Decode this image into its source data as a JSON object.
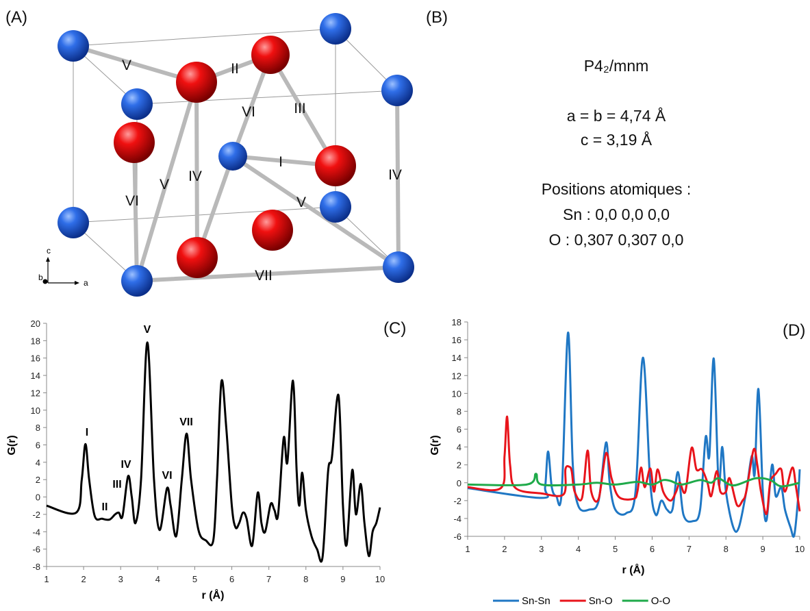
{
  "panel_a": {
    "label": "(A)",
    "bonds": [
      "V",
      "II",
      "VI",
      "III",
      "I",
      "IV",
      "V",
      "VI",
      "IV",
      "V",
      "VII"
    ],
    "axes": [
      "c",
      "b",
      "a"
    ]
  },
  "panel_b": {
    "label": "(B)",
    "space_group": "P4₂/mnm",
    "lattice": [
      "a = b = 4,74 Å",
      "c =  3,19 Å"
    ],
    "positions_title": "Positions atomiques :",
    "positions": [
      "Sn : 0,0 0,0 0,0",
      "O : 0,307 0,307 0,0"
    ]
  },
  "chart_data": [
    {
      "type": "line",
      "panel_label": "(C)",
      "x_label": "r (Å)",
      "y_label": "G(r)",
      "xlim": [
        1,
        10
      ],
      "xticks": [
        1,
        2,
        3,
        4,
        5,
        6,
        7,
        8,
        9,
        10
      ],
      "ylim": [
        -8,
        20
      ],
      "yticks": [
        -8,
        -6,
        -4,
        -2,
        0,
        2,
        4,
        6,
        8,
        10,
        12,
        14,
        16,
        18,
        20
      ],
      "annotations": [
        "I",
        "II",
        "III",
        "IV",
        "V",
        "VI",
        "VII"
      ],
      "series": [
        {
          "color": "#000000",
          "x": [
            1,
            1.8,
            1.95,
            2.05,
            2.15,
            2.3,
            2.5,
            2.7,
            2.85,
            2.95,
            3.05,
            3.2,
            3.3,
            3.4,
            3.55,
            3.72,
            3.9,
            4.05,
            4.25,
            4.35,
            4.5,
            4.65,
            4.78,
            4.9,
            5.1,
            5.3,
            5.5,
            5.6,
            5.72,
            5.85,
            6.0,
            6.1,
            6.2,
            6.3,
            6.4,
            6.55,
            6.7,
            6.8,
            6.9,
            7.05,
            7.15,
            7.25,
            7.4,
            7.5,
            7.65,
            7.75,
            7.82,
            7.9,
            8.0,
            8.15,
            8.3,
            8.45,
            8.6,
            8.7,
            8.88,
            9.0,
            9.1,
            9.25,
            9.35,
            9.48,
            9.58,
            9.7,
            9.8,
            9.9,
            10
          ],
          "values": [
            -1.0,
            -1.8,
            2,
            6.1,
            2,
            -2.2,
            -2.5,
            -2.6,
            -2.0,
            -1.8,
            -2.2,
            2.4,
            0,
            -3.0,
            2,
            17.8,
            2,
            -3.8,
            1.0,
            -1,
            -4.5,
            2,
            7.3,
            2,
            -3.8,
            -5,
            -5,
            2,
            13.3,
            8,
            -1,
            -3.5,
            -3,
            -1.8,
            -2.5,
            -5.6,
            0.5,
            -3,
            -4,
            -0.8,
            -1.5,
            -2,
            6.8,
            4,
            13.4,
            3,
            -1,
            2.8,
            -1.5,
            -4.5,
            -6,
            -6.9,
            3,
            4.5,
            11.7,
            -1,
            -5.5,
            3.1,
            -2,
            1.5,
            -3,
            -6.8,
            -4,
            -3,
            -1.2
          ]
        }
      ]
    },
    {
      "type": "line",
      "panel_label": "(D)",
      "x_label": "r (Å)",
      "y_label": "G(r)",
      "xlim": [
        1,
        10
      ],
      "xticks": [
        1,
        2,
        3,
        4,
        5,
        6,
        7,
        8,
        9,
        10
      ],
      "ylim": [
        -6,
        18
      ],
      "yticks": [
        -6,
        -4,
        -2,
        0,
        2,
        4,
        6,
        8,
        10,
        12,
        14,
        16,
        18
      ],
      "series": [
        {
          "name": "Sn-Sn",
          "color": "#1f77c4",
          "x": [
            1,
            3,
            3.1,
            3.18,
            3.28,
            3.4,
            3.55,
            3.72,
            3.85,
            4.0,
            4.3,
            4.55,
            4.75,
            4.85,
            5.0,
            5.3,
            5.55,
            5.75,
            5.95,
            6.1,
            6.25,
            6.4,
            6.55,
            6.7,
            6.85,
            7.1,
            7.3,
            7.45,
            7.55,
            7.67,
            7.8,
            7.9,
            8.0,
            8.2,
            8.35,
            8.55,
            8.7,
            8.78,
            8.88,
            9.0,
            9.1,
            9.25,
            9.35,
            9.5,
            9.6,
            9.75,
            9.85,
            9.95,
            10
          ],
          "values": [
            -0.6,
            -1.7,
            -0.5,
            3.5,
            -0.5,
            -1.5,
            -1,
            16.8,
            2,
            -2.6,
            -3,
            -2,
            4.5,
            0,
            -3,
            -3.4,
            -1,
            14,
            0,
            -3.6,
            -2,
            -3,
            -3,
            1.2,
            -3.6,
            -4.3,
            -3,
            5.1,
            3,
            13.9,
            0,
            4,
            -1,
            -5,
            -5,
            -1,
            3,
            1,
            10.5,
            -1,
            -4.2,
            2,
            -1.5,
            -0.5,
            -3,
            -5,
            -5.9,
            -2,
            1.5
          ]
        },
        {
          "name": "Sn-O",
          "color": "#e8141b",
          "x": [
            1,
            1.9,
            2.0,
            2.07,
            2.15,
            2.3,
            3.0,
            3.6,
            3.65,
            3.75,
            3.82,
            3.9,
            4.1,
            4.25,
            4.35,
            4.55,
            4.75,
            4.9,
            5.1,
            5.5,
            5.6,
            5.7,
            5.8,
            5.95,
            6.05,
            6.15,
            6.3,
            6.5,
            6.65,
            6.75,
            6.9,
            7.07,
            7.2,
            7.35,
            7.5,
            7.6,
            7.75,
            7.85,
            8.0,
            8.1,
            8.3,
            8.45,
            8.55,
            8.75,
            8.85,
            8.95,
            9.1,
            9.2,
            9.35,
            9.5,
            9.6,
            9.8,
            9.9,
            10
          ],
          "values": [
            -0.5,
            -0.6,
            3,
            7.4,
            2,
            -0.6,
            -1.2,
            -1.3,
            1.5,
            1.8,
            1.3,
            -1,
            -1.7,
            3.6,
            -1,
            -1.8,
            3.3,
            0.5,
            -1.6,
            -1.8,
            -1,
            1.7,
            -0.5,
            1.6,
            -1,
            1.5,
            -1,
            -2,
            -1,
            0,
            -1,
            3.9,
            1.5,
            1.5,
            0,
            -1.5,
            1.3,
            -1,
            -1,
            0.5,
            -2.5,
            -2,
            -1,
            3.7,
            2,
            -1,
            -3.5,
            0,
            1,
            1.5,
            -1,
            1.7,
            -0.5,
            -3.2
          ]
        },
        {
          "name": "O-O",
          "color": "#1faa4a",
          "x": [
            1,
            2.6,
            2.85,
            3.0,
            4,
            4.5,
            5.0,
            5.6,
            6.0,
            6.3,
            6.5,
            6.8,
            7.3,
            7.6,
            7.8,
            8.2,
            8.8,
            9.2,
            9.5,
            10
          ],
          "values": [
            -0.2,
            -0.2,
            1.0,
            -0.2,
            -0.2,
            0,
            -0.2,
            0.1,
            -0.2,
            0.3,
            0.2,
            -0.2,
            0.3,
            0,
            0.5,
            -0.3,
            0.5,
            0.3,
            -0.4,
            0
          ]
        }
      ]
    }
  ]
}
